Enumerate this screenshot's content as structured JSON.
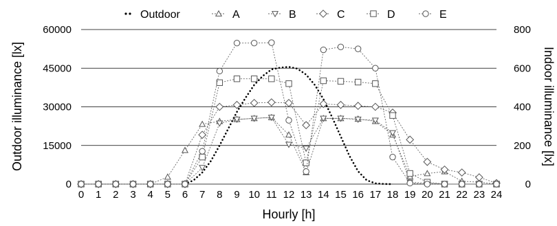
{
  "chart_data": {
    "type": "line",
    "xlabel": "Hourly [h]",
    "ylabel_left": "Outdoor illuminance [lx]",
    "ylabel_right": "Indoor illuminance [lx]",
    "x": [
      0,
      1,
      2,
      3,
      4,
      5,
      6,
      7,
      8,
      9,
      10,
      11,
      12,
      13,
      14,
      15,
      16,
      17,
      18,
      19,
      20,
      21,
      22,
      23,
      24
    ],
    "ylim_left": [
      0,
      60000
    ],
    "yticks_left": [
      "0",
      "15000",
      "30000",
      "45000",
      "60000"
    ],
    "ylim_right": [
      0,
      800
    ],
    "yticks_right": [
      "0",
      "200",
      "400",
      "600",
      "800"
    ],
    "grid": true,
    "legend_position": "top",
    "outdoor": {
      "name": "Outdoor",
      "axis": "left",
      "x": [
        6,
        6.5,
        7,
        7.5,
        8,
        8.5,
        9,
        9.5,
        10,
        10.5,
        11,
        11.5,
        12,
        12.5,
        13,
        13.5,
        14,
        14.5,
        15,
        15.5,
        16,
        16.5,
        17,
        17.5,
        18
      ],
      "values": [
        0,
        1500,
        4500,
        9000,
        15000,
        21500,
        28000,
        33500,
        38500,
        42000,
        44500,
        45200,
        45500,
        44800,
        42500,
        38500,
        33000,
        26000,
        18500,
        11000,
        5000,
        1500,
        300,
        50,
        0
      ]
    },
    "series": [
      {
        "name": "A",
        "marker": "triangle-up",
        "axis": "right",
        "values": [
          0,
          0,
          0,
          0,
          0,
          37,
          175,
          310,
          325,
          335,
          340,
          345,
          255,
          60,
          340,
          340,
          337,
          325,
          255,
          40,
          55,
          65,
          15,
          10,
          0
        ]
      },
      {
        "name": "B",
        "marker": "triangle-down",
        "axis": "right",
        "values": [
          0,
          0,
          0,
          0,
          0,
          0,
          0,
          85,
          315,
          335,
          340,
          345,
          205,
          185,
          340,
          340,
          335,
          330,
          265,
          10,
          5,
          0,
          0,
          0,
          0
        ]
      },
      {
        "name": "C",
        "marker": "diamond",
        "axis": "right",
        "values": [
          0,
          0,
          0,
          0,
          0,
          0,
          0,
          255,
          400,
          410,
          420,
          423,
          420,
          305,
          415,
          410,
          405,
          400,
          370,
          230,
          115,
          75,
          60,
          35,
          5
        ]
      },
      {
        "name": "D",
        "marker": "square",
        "axis": "right",
        "values": [
          0,
          0,
          0,
          0,
          0,
          0,
          0,
          140,
          525,
          545,
          545,
          545,
          520,
          110,
          535,
          532,
          528,
          520,
          355,
          55,
          10,
          0,
          0,
          0,
          0
        ]
      },
      {
        "name": "E",
        "marker": "circle",
        "axis": "right",
        "values": [
          0,
          0,
          0,
          0,
          0,
          0,
          0,
          170,
          585,
          730,
          730,
          732,
          330,
          65,
          695,
          710,
          700,
          600,
          140,
          5,
          0,
          0,
          0,
          0,
          0
        ]
      }
    ]
  }
}
